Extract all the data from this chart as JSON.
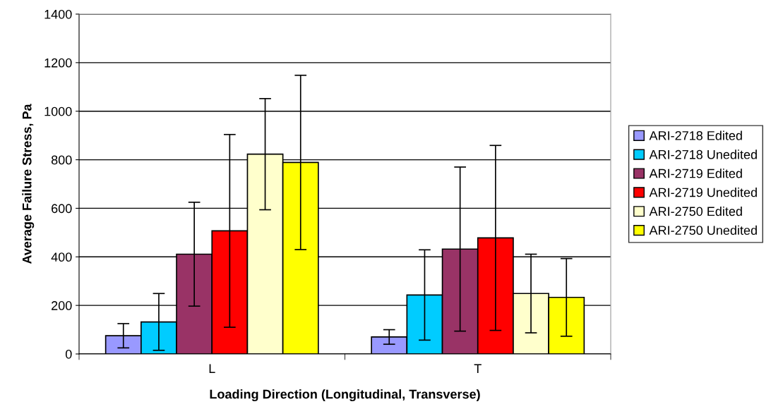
{
  "chart_data": {
    "type": "bar",
    "xlabel": "Loading Direction (Longitudinal, Transverse)",
    "ylabel": "Average Failure Stress, Pa",
    "categories": [
      "L",
      "T"
    ],
    "series": [
      {
        "name": "ARI-2718 Edited",
        "color": "#9999ff",
        "values": [
          75,
          70
        ],
        "errors": [
          50,
          30
        ]
      },
      {
        "name": "ARI-2718 Unedited",
        "color": "#00ccff",
        "values": [
          132,
          243
        ],
        "errors": [
          117,
          186
        ]
      },
      {
        "name": "ARI-2719 Edited",
        "color": "#993366",
        "values": [
          411,
          432
        ],
        "errors": [
          214,
          338
        ]
      },
      {
        "name": "ARI-2719 Unedited",
        "color": "#ff0000",
        "values": [
          507,
          478
        ],
        "errors": [
          397,
          381
        ]
      },
      {
        "name": "ARI-2750 Edited",
        "color": "#ffffcc",
        "values": [
          823,
          249
        ],
        "errors": [
          229,
          162
        ]
      },
      {
        "name": "ARI-2750 Unedited",
        "color": "#ffff00",
        "values": [
          789,
          233
        ],
        "errors": [
          359,
          160
        ]
      }
    ],
    "ylim": [
      0,
      1400
    ],
    "yticks": [
      0,
      200,
      400,
      600,
      800,
      1000,
      1200,
      1400
    ],
    "grid": "y",
    "legend": "right"
  }
}
